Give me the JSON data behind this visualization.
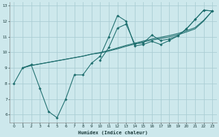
{
  "bg_color": "#cde8ec",
  "grid_color": "#aacdd3",
  "line_color": "#1e6e6e",
  "xlabel": "Humidex (Indice chaleur)",
  "xlim": [
    -0.5,
    23.5
  ],
  "ylim": [
    5.5,
    13.2
  ],
  "xticks": [
    0,
    1,
    2,
    3,
    4,
    5,
    6,
    7,
    8,
    9,
    10,
    11,
    12,
    13,
    14,
    15,
    16,
    17,
    18,
    19,
    20,
    21,
    22,
    23
  ],
  "yticks": [
    6,
    7,
    8,
    9,
    10,
    11,
    12,
    13
  ],
  "series": [
    {
      "x": [
        0,
        1,
        2,
        3,
        4,
        5,
        6,
        7,
        8,
        9,
        10,
        11,
        12,
        13,
        14,
        15,
        16,
        17,
        18,
        19,
        20,
        21,
        22,
        23
      ],
      "y": [
        8.0,
        9.0,
        9.2,
        7.7,
        6.2,
        5.8,
        7.0,
        8.55,
        8.55,
        9.3,
        9.75,
        11.0,
        12.35,
        12.0,
        10.4,
        10.5,
        10.7,
        10.5,
        10.75,
        11.05,
        11.5,
        12.1,
        12.7,
        12.65
      ]
    },
    {
      "x": [
        10,
        11,
        12,
        13,
        14,
        15,
        16,
        17,
        18,
        19,
        20,
        21,
        22,
        23
      ],
      "y": [
        9.5,
        10.3,
        11.55,
        11.8,
        10.55,
        10.6,
        11.1,
        10.75,
        10.85,
        11.05,
        11.5,
        12.1,
        12.7,
        12.65
      ]
    },
    {
      "x": [
        1,
        2,
        3,
        4,
        5,
        6,
        7,
        8,
        9,
        10,
        11,
        12,
        13,
        14,
        15,
        16,
        17,
        18,
        19,
        20,
        21,
        22,
        23
      ],
      "y": [
        9.0,
        9.15,
        9.25,
        9.35,
        9.45,
        9.55,
        9.65,
        9.75,
        9.88,
        9.98,
        10.12,
        10.28,
        10.44,
        10.58,
        10.72,
        10.85,
        10.96,
        11.07,
        11.2,
        11.38,
        11.58,
        12.05,
        12.65
      ]
    },
    {
      "x": [
        1,
        2,
        3,
        4,
        5,
        6,
        7,
        8,
        9,
        10,
        11,
        12,
        13,
        14,
        15,
        16,
        17,
        18,
        19,
        20,
        21,
        22,
        23
      ],
      "y": [
        9.0,
        9.15,
        9.25,
        9.35,
        9.45,
        9.55,
        9.65,
        9.75,
        9.88,
        9.95,
        10.08,
        10.22,
        10.38,
        10.52,
        10.66,
        10.78,
        10.88,
        10.98,
        11.12,
        11.3,
        11.5,
        12.0,
        12.65
      ]
    }
  ],
  "marker_series": [
    0,
    1
  ],
  "smooth_series": [
    2,
    3
  ]
}
